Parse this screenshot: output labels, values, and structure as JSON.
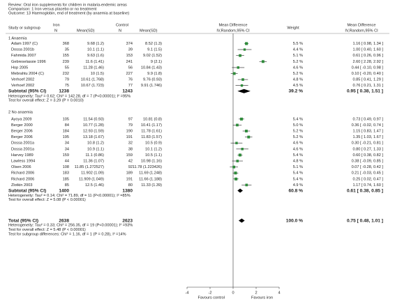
{
  "header": {
    "review": "Review:  Oral iron supplements for children in malaria-endemic areas",
    "comparison": "Comparison:  1 Iron versus placebo or no treatment",
    "outcome": "Outcome:  13 Haemoglobin, end of treatment (by anaemia at baseline)"
  },
  "chart_data": {
    "type": "forest",
    "columns": {
      "study": "Study or subgroup",
      "iron": "Iron",
      "control": "Control",
      "n": "N",
      "mean_sd": "Mean(SD)",
      "md": "Mean Difference",
      "method": "IV,Random,95% CI",
      "weight": "Weight"
    },
    "groups": [
      {
        "label": "1 Anaemia",
        "studies": [
          {
            "name": "Adam 1997 (C)",
            "iron_n": 368,
            "iron_mean_sd": "9.68 (1.2)",
            "control_n": 374,
            "control_mean_sd": "8.52 (1.3)",
            "weight": 5.5,
            "weight_label": "5.5 %",
            "md": 1.16,
            "lo": 0.98,
            "hi": 1.34,
            "ci_label": "1.16 [ 0.98, 1.34 ]"
          },
          {
            "name": "Dossa 2001b",
            "iron_n": 35,
            "iron_mean_sd": "10.1 (1.1)",
            "control_n": 39,
            "control_mean_sd": "9.1 (1.5)",
            "weight": 4.4,
            "weight_label": "4.4 %",
            "md": 1.0,
            "lo": 0.4,
            "hi": 1.6,
            "ci_label": "1.00 [ 0.40, 1.60 ]"
          },
          {
            "name": "Fahmida 2007",
            "iron_n": 155,
            "iron_mean_sd": "9.63 (1.6)",
            "control_n": 153,
            "control_mean_sd": "9.02 (1.52)",
            "weight": 5.1,
            "weight_label": "5.1 %",
            "md": 0.61,
            "lo": 0.26,
            "hi": 0.96,
            "ci_label": "0.61 [ 0.26, 0.96 ]"
          },
          {
            "name": "Gebreselassie 1996",
            "iron_n": 239,
            "iron_mean_sd": "11.6 (1.41)",
            "control_n": 241,
            "control_mean_sd": "9 (2.1)",
            "weight": 5.2,
            "weight_label": "5.2 %",
            "md": 2.6,
            "lo": 2.28,
            "hi": 2.92,
            "ci_label": "2.60 [ 2.28, 2.92 ]"
          },
          {
            "name": "Hop 2005",
            "iron_n": 55,
            "iron_mean_sd": "11.28 (1.46)",
            "control_n": 56,
            "control_mean_sd": "10.84 (1.43)",
            "weight": 4.6,
            "weight_label": "4.6 %",
            "md": 0.44,
            "lo": -0.1,
            "hi": 0.98,
            "ci_label": "0.44 [ -0.10, 0.98 ]"
          },
          {
            "name": "Mebrahtu 2004 (C)",
            "iron_n": 232,
            "iron_mean_sd": "10 (1.5)",
            "control_n": 227,
            "control_mean_sd": "9.9 (1.8)",
            "weight": 5.2,
            "weight_label": "5.2 %",
            "md": 0.1,
            "lo": -0.2,
            "hi": 0.4,
            "ci_label": "0.10 [ -0.20, 0.40 ]"
          },
          {
            "name": "Verhoef 2002",
            "iron_n": 79,
            "iron_mean_sd": "10.61 (1.768)",
            "control_n": 76,
            "control_mean_sd": "9.76 (0.93)",
            "weight": 4.8,
            "weight_label": "4.8 %",
            "md": 0.85,
            "lo": 0.41,
            "hi": 1.29,
            "ci_label": "0.85 [ 0.41, 1.29 ]"
          },
          {
            "name": "Verhoef 2002",
            "iron_n": 75,
            "iron_mean_sd": "10.67 (1.723)",
            "control_n": 77,
            "control_mean_sd": "9.91 (1.746)",
            "weight": 4.5,
            "weight_label": "4.5 %",
            "md": 0.76,
            "lo": 0.21,
            "hi": 1.31,
            "ci_label": "0.76 [ 0.21, 1.31 ]"
          }
        ],
        "subtotal": {
          "name": "Subtotal (95% CI)",
          "iron_n": 1238,
          "control_n": 1243,
          "weight": 39.2,
          "weight_label": "39.2 %",
          "md": 0.95,
          "lo": 0.38,
          "hi": 1.51,
          "ci_label": "0.95 [ 0.38, 1.51 ]"
        },
        "heterogeneity": "Heterogeneity: Tau² = 0.62; Chi² = 142.28, df = 7 (P<0.00001); I² =95%",
        "overall": "Test for overall effect: Z = 3.29 (P = 0.0010)"
      },
      {
        "label": "2 No anaemia",
        "studies": [
          {
            "name": "Ayoya 2009",
            "iron_n": 105,
            "iron_mean_sd": "11.54 (0.93)",
            "control_n": 97,
            "control_mean_sd": "10.81 (0.8)",
            "weight": 5.4,
            "weight_label": "5.4 %",
            "md": 0.73,
            "lo": 0.49,
            "hi": 0.97,
            "ci_label": "0.73 [ 0.49, 0.97 ]"
          },
          {
            "name": "Berger 2000",
            "iron_n": 84,
            "iron_mean_sd": "10.77 (1.28)",
            "control_n": 79,
            "control_mean_sd": "10.41 (1.17)",
            "weight": 5.0,
            "weight_label": "5.0 %",
            "md": 0.36,
            "lo": -0.02,
            "hi": 0.74,
            "ci_label": "0.36 [ -0.02, 0.74 ]"
          },
          {
            "name": "Berger 2006",
            "iron_n": 184,
            "iron_mean_sd": "12.93 (1.59)",
            "control_n": 190,
            "control_mean_sd": "11.78 (1.61)",
            "weight": 5.2,
            "weight_label": "5.2 %",
            "md": 1.15,
            "lo": 0.83,
            "hi": 1.47,
            "ci_label": "1.15 [ 0.83, 1.47 ]"
          },
          {
            "name": "Berger 2006",
            "iron_n": 195,
            "iron_mean_sd": "13.18 (1.67)",
            "control_n": 191,
            "control_mean_sd": "11.83 (1.57)",
            "weight": 5.2,
            "weight_label": "5.2 %",
            "md": 1.35,
            "lo": 1.03,
            "hi": 1.67,
            "ci_label": "1.35 [ 1.03, 1.67 ]"
          },
          {
            "name": "Dossa 2001a",
            "iron_n": 34,
            "iron_mean_sd": "10.8 (1.2)",
            "control_n": 32,
            "control_mean_sd": "10.5 (0.9)",
            "weight": 4.6,
            "weight_label": "4.6 %",
            "md": 0.3,
            "lo": -0.21,
            "hi": 0.81,
            "ci_label": "0.30 [ -0.21, 0.81 ]"
          },
          {
            "name": "Dossa 2001a",
            "iron_n": 34,
            "iron_mean_sd": "10.9 (1.1)",
            "control_n": 38,
            "control_mean_sd": "10.1 (1.2)",
            "weight": 4.6,
            "weight_label": "4.6 %",
            "md": 0.8,
            "lo": 0.27,
            "hi": 1.33,
            "ci_label": "0.80 [ 0.27, 1.33 ]"
          },
          {
            "name": "Harvey 1989",
            "iron_n": 159,
            "iron_mean_sd": "11.1 (0.86)",
            "control_n": 159,
            "control_mean_sd": "10.5 (1.1)",
            "weight": 5.4,
            "weight_label": "5.4 %",
            "md": 0.6,
            "lo": 0.38,
            "hi": 0.82,
            "ci_label": "0.60 [ 0.38, 0.82 ]"
          },
          {
            "name": "Lawless 1994",
            "iron_n": 44,
            "iron_mean_sd": "11.36 (1.07)",
            "control_n": 42,
            "control_mean_sd": "10.98 (1.16)",
            "weight": 4.8,
            "weight_label": "4.8 %",
            "md": 0.38,
            "lo": -0.09,
            "hi": 0.85,
            "ci_label": "0.38 [ -0.09, 0.85 ]"
          },
          {
            "name": "Olsen 2006",
            "iron_n": 108,
            "iron_mean_sd": "11.85 (1.272527)",
            "control_n": 92,
            "control_mean_sd": "11.78 (1.223426)",
            "weight": 5.1,
            "weight_label": "5.1 %",
            "md": 0.07,
            "lo": -0.28,
            "hi": 0.42,
            "ci_label": "0.07 [ -0.28, 0.42 ]"
          },
          {
            "name": "Richard 2006",
            "iron_n": 183,
            "iron_mean_sd": "11.902 (1.09)",
            "control_n": 189,
            "control_mean_sd": "11.69 (1.248)",
            "weight": 5.4,
            "weight_label": "5.4 %",
            "md": 0.21,
            "lo": -0.03,
            "hi": 0.45,
            "ci_label": "0.21 [ -0.03, 0.45 ]"
          },
          {
            "name": "Richard 2006",
            "iron_n": 185,
            "iron_mean_sd": "11.909 (1.049)",
            "control_n": 191,
            "control_mean_sd": "11.66 (1.188)",
            "weight": 5.4,
            "weight_label": "5.4 %",
            "md": 0.25,
            "lo": 0.02,
            "hi": 0.47,
            "ci_label": "0.25 [ 0.02, 0.47 ]"
          },
          {
            "name": "Zlotkin 2003",
            "iron_n": 85,
            "iron_mean_sd": "12.5 (1.46)",
            "control_n": 80,
            "control_mean_sd": "11.33 (1.39)",
            "weight": 4.9,
            "weight_label": "4.9 %",
            "md": 1.17,
            "lo": 0.74,
            "hi": 1.6,
            "ci_label": "1.17 [ 0.74, 1.60 ]"
          }
        ],
        "subtotal": {
          "name": "Subtotal (95% CI)",
          "iron_n": 1400,
          "control_n": 1380,
          "weight": 60.8,
          "weight_label": "60.8 %",
          "md": 0.61,
          "lo": 0.38,
          "hi": 0.85,
          "ci_label": "0.61 [ 0.38, 0.85 ]"
        },
        "heterogeneity": "Heterogeneity: Tau² = 0.14; Chi² = 71.89, df = 11 (P<0.00001); I² =85%",
        "overall": "Test for overall effect: Z = 5.08 (P < 0.00001)"
      }
    ],
    "total": {
      "name": "Total (95% CI)",
      "iron_n": 2638,
      "control_n": 2623,
      "weight": 100.0,
      "weight_label": "100.0 %",
      "md": 0.75,
      "lo": 0.48,
      "hi": 1.01,
      "ci_label": "0.75 [ 0.48, 1.01 ]"
    },
    "total_notes": [
      "Heterogeneity: Tau² = 0.33; Chi² = 256.35, df = 19 (P<0.00001); I² =93%",
      "Test for overall effect: Z = 5.48 (P < 0.00001)",
      "Test for subgroup differences: Chi² = 1.16, df = 1 (P = 0.28), I² =14%"
    ],
    "xlim": [
      -4,
      4
    ],
    "xticks": [
      -4,
      -2,
      0,
      2,
      4
    ],
    "xlabel_left": "Favours control",
    "xlabel_right": "Favours iron",
    "marker_color": "#2e8b3a",
    "summary_color": "#000000"
  }
}
